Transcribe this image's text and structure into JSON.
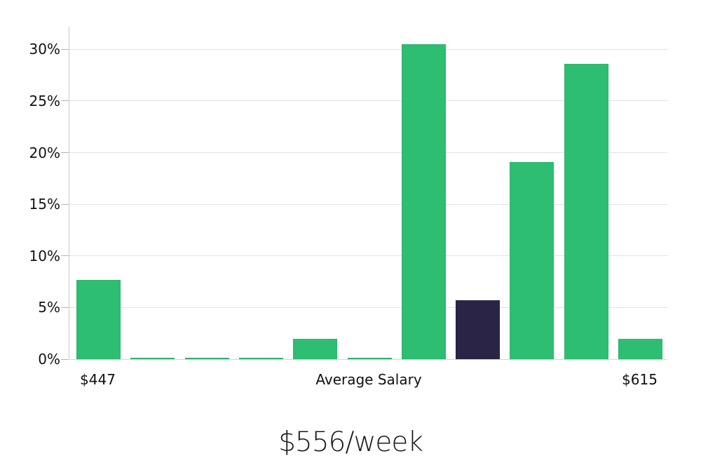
{
  "chart_data": {
    "type": "bar",
    "title": "$556/week",
    "xlabel": "",
    "ylabel": "",
    "values": [
      7.7,
      0.1,
      0.1,
      0.1,
      2.0,
      0.1,
      30.5,
      5.7,
      19.1,
      28.6,
      2.0
    ],
    "highlight_index": 7,
    "x_axis_labels": [
      {
        "bar_index": 0,
        "label": "$447"
      },
      {
        "bar_index": 5,
        "label": "Average Salary"
      },
      {
        "bar_index": 10,
        "label": "$615"
      }
    ],
    "y_ticks": [
      {
        "value": 0,
        "label": "0%"
      },
      {
        "value": 5,
        "label": "5%"
      },
      {
        "value": 10,
        "label": "10%"
      },
      {
        "value": 15,
        "label": "15%"
      },
      {
        "value": 20,
        "label": "20%"
      },
      {
        "value": 25,
        "label": "25%"
      },
      {
        "value": 30,
        "label": "30%"
      }
    ],
    "ylim": [
      0,
      32.2
    ],
    "grid": true,
    "legend": false,
    "colors": {
      "bar": "#2dbe72",
      "highlight_bar": "#2a2447",
      "gridline": "#e2e2e2",
      "axis": "#c9c9c9",
      "tick": "#b5b5b5",
      "text": "#111111",
      "background": "#ffffff"
    }
  }
}
